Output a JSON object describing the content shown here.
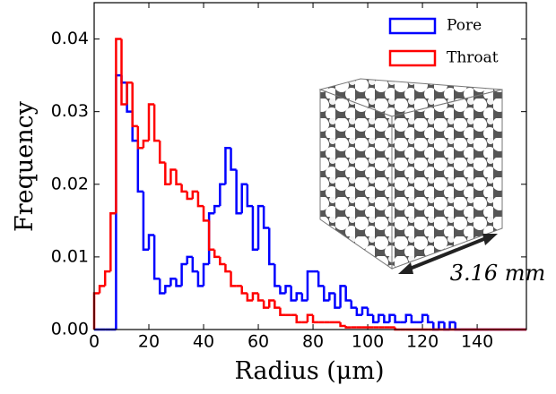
{
  "chart_data": {
    "type": "histogram",
    "xlabel": "Radius (μm)",
    "ylabel": "Frequency",
    "annotation": "3.16 mm",
    "bins": [
      0,
      2,
      4,
      6,
      8,
      10,
      12,
      14,
      16,
      18,
      20,
      22,
      24,
      26,
      28,
      30,
      32,
      34,
      36,
      38,
      40,
      42,
      44,
      46,
      48,
      50,
      52,
      54,
      56,
      58,
      60,
      62,
      64,
      66,
      68,
      70,
      72,
      74,
      76,
      78,
      80,
      82,
      84,
      86,
      88,
      90,
      92,
      94,
      96,
      98,
      100,
      102,
      104,
      106,
      108,
      110,
      112,
      114,
      116,
      118,
      120,
      122,
      124,
      126,
      128,
      130,
      132,
      134,
      136,
      138,
      140,
      142,
      144,
      146,
      148,
      150,
      152,
      154,
      156,
      158
    ],
    "series": [
      {
        "name": "Pore",
        "color": "#0000ff",
        "values": [
          0,
          0,
          0,
          0,
          0.035,
          0.034,
          0.03,
          0.026,
          0.019,
          0.011,
          0.013,
          0.007,
          0.005,
          0.006,
          0.007,
          0.006,
          0.009,
          0.01,
          0.008,
          0.006,
          0.009,
          0.016,
          0.017,
          0.02,
          0.025,
          0.022,
          0.016,
          0.02,
          0.017,
          0.011,
          0.017,
          0.014,
          0.009,
          0.006,
          0.005,
          0.006,
          0.004,
          0.005,
          0.004,
          0.008,
          0.008,
          0.006,
          0.004,
          0.005,
          0.003,
          0.006,
          0.004,
          0.003,
          0.002,
          0.003,
          0.002,
          0.001,
          0.002,
          0.001,
          0.002,
          0.001,
          0.001,
          0.002,
          0.001,
          0.001,
          0.002,
          0.001,
          0,
          0.001,
          0,
          0.001,
          0,
          0,
          0,
          0,
          0,
          0,
          0,
          0,
          0,
          0,
          0,
          0,
          0
        ]
      },
      {
        "name": "Throat",
        "color": "#ff0000",
        "values": [
          0.005,
          0.006,
          0.008,
          0.016,
          0.04,
          0.031,
          0.034,
          0.028,
          0.025,
          0.026,
          0.031,
          0.026,
          0.023,
          0.02,
          0.022,
          0.02,
          0.019,
          0.018,
          0.019,
          0.017,
          0.015,
          0.011,
          0.01,
          0.009,
          0.008,
          0.006,
          0.006,
          0.005,
          0.004,
          0.005,
          0.004,
          0.003,
          0.004,
          0.003,
          0.002,
          0.002,
          0.002,
          0.001,
          0.001,
          0.002,
          0.001,
          0.001,
          0.001,
          0.001,
          0.001,
          0.0005,
          0.0003,
          0.0003,
          0.0003,
          0.0003,
          0.0003,
          0.0003,
          0.0003,
          0.0003,
          0.0003,
          0,
          0,
          0,
          0,
          0,
          0,
          0,
          0,
          0,
          0,
          0,
          0,
          0,
          0,
          0,
          0,
          0,
          0,
          0,
          0,
          0,
          0,
          0,
          0
        ]
      }
    ],
    "xlim": [
      0,
      158
    ],
    "xticks": [
      0,
      20,
      40,
      60,
      80,
      100,
      120,
      140
    ],
    "ylim": [
      0,
      0.045
    ],
    "yticks": [
      {
        "value": 0,
        "label": "0.00"
      },
      0.01,
      0.02,
      0.03,
      0.04
    ],
    "legend": "upper right"
  }
}
